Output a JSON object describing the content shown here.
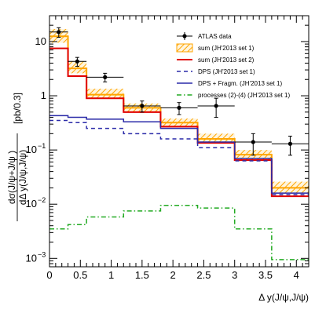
{
  "chart_data": {
    "type": "line",
    "xlabel": "Δ y(J/ψ,J/ψ)",
    "ylabel_line1": "dσ(J/ψ+J/ψ )",
    "ylabel_line2": "dΔ y(J/ψ,J/ψ)",
    "ylabel_units": "[pb/0.3]",
    "xlim": [
      0,
      4.2
    ],
    "ylim": [
      0.0007,
      30
    ],
    "log_y": true,
    "grid": false,
    "legend_position": "top-right",
    "bin_edges": [
      0,
      0.3,
      0.6,
      1.2,
      1.8,
      2.4,
      3.0,
      3.6,
      4.2
    ],
    "x_ticks": [
      "0",
      "0.5",
      "1",
      "1.5",
      "2",
      "2.5",
      "3",
      "3.5",
      "4"
    ],
    "x_tick_values": [
      0,
      0.5,
      1,
      1.5,
      2,
      2.5,
      3,
      3.5,
      4
    ],
    "y_ticks": [
      {
        "value": 10,
        "base": "10",
        "exp": ""
      },
      {
        "value": 1,
        "base": "1",
        "exp": ""
      },
      {
        "value": 0.1,
        "base": "10",
        "exp": "−1"
      },
      {
        "value": 0.01,
        "base": "10",
        "exp": "−2"
      },
      {
        "value": 0.001,
        "base": "10",
        "exp": "−3"
      }
    ],
    "data_points": {
      "name": "ATLAS data",
      "x": [
        0.15,
        0.45,
        0.9,
        1.5,
        2.1,
        2.7,
        3.3,
        3.9
      ],
      "y": [
        15.0,
        4.3,
        2.2,
        0.65,
        0.6,
        0.65,
        0.14,
        0.13
      ],
      "x_err": [
        0.15,
        0.15,
        0.3,
        0.3,
        0.3,
        0.3,
        0.3,
        0.3
      ],
      "y_err_low": [
        3.0,
        0.8,
        0.4,
        0.15,
        0.15,
        0.25,
        0.06,
        0.05
      ],
      "y_err_high": [
        3.0,
        0.8,
        0.4,
        0.15,
        0.15,
        0.25,
        0.06,
        0.05
      ]
    },
    "band": {
      "name": "sum (JH'2013 set 1)",
      "color": "#ffa500",
      "low": [
        9.5,
        2.6,
        0.9,
        0.5,
        0.27,
        0.14,
        0.065,
        0.016
      ],
      "high": [
        17.0,
        4.3,
        1.35,
        0.72,
        0.38,
        0.2,
        0.1,
        0.026
      ],
      "central": [
        12.5,
        3.2,
        1.05,
        0.6,
        0.32,
        0.16,
        0.082,
        0.02
      ]
    },
    "series": [
      {
        "name": "sum (JH'2013 set 2)",
        "color": "#e00000",
        "dash": "",
        "values": [
          7.5,
          2.3,
          0.9,
          0.5,
          0.27,
          0.135,
          0.065,
          0.014
        ]
      },
      {
        "name": "DPS (JH'2013 set 1)",
        "color": "#2a2aa8",
        "dash": "5,4",
        "values": [
          0.35,
          0.32,
          0.25,
          0.2,
          0.16,
          0.11,
          0.063,
          0.015
        ]
      },
      {
        "name": "DPS + Fragm. (JH'2013 set 1)",
        "color": "#2a2aa8",
        "dash": "",
        "values": [
          0.43,
          0.4,
          0.37,
          0.33,
          0.25,
          0.14,
          0.07,
          0.016
        ]
      },
      {
        "name": "processes (2)-(4) (JH'2013 set 1)",
        "color": "#22aa22",
        "dash": "6,3,1.5,3",
        "values": [
          0.0035,
          0.0042,
          0.0058,
          0.0075,
          0.0095,
          0.0085,
          0.0035,
          0.00095
        ]
      }
    ]
  }
}
